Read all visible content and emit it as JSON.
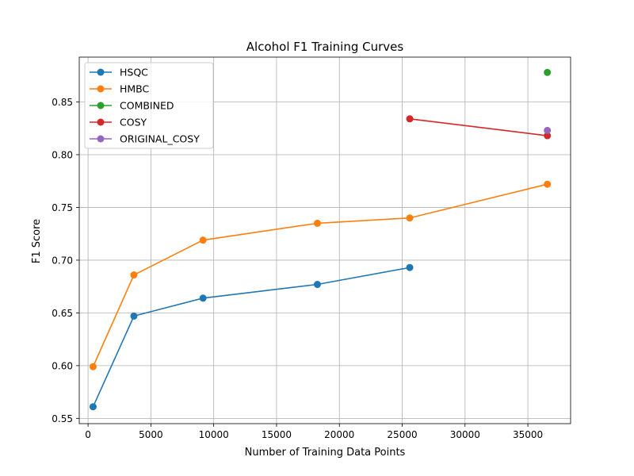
{
  "chart_data": {
    "type": "line",
    "title": "Alcohol F1 Training Curves",
    "xlabel": "Number of Training Data Points",
    "ylabel": "F1 Score",
    "xlim": [
      -700,
      38400
    ],
    "ylim": [
      0.545,
      0.8925
    ],
    "xticks": [
      0,
      5000,
      10000,
      15000,
      20000,
      25000,
      30000,
      35000
    ],
    "yticks": [
      0.55,
      0.6,
      0.65,
      0.7,
      0.75,
      0.8,
      0.85
    ],
    "xtick_labels": [
      "0",
      "5000",
      "10000",
      "15000",
      "20000",
      "25000",
      "30000",
      "35000"
    ],
    "ytick_labels": [
      "0.55",
      "0.60",
      "0.65",
      "0.70",
      "0.75",
      "0.80",
      "0.85"
    ],
    "grid": true,
    "legend_position": "top-left",
    "series": [
      {
        "name": "HSQC",
        "color": "#1f77b4",
        "x": [
          400,
          3650,
          9150,
          18250,
          25600
        ],
        "y": [
          0.561,
          0.647,
          0.664,
          0.677,
          0.693
        ]
      },
      {
        "name": "HMBC",
        "color": "#ff7f0e",
        "x": [
          400,
          3650,
          9150,
          18250,
          25600,
          36550
        ],
        "y": [
          0.599,
          0.686,
          0.719,
          0.735,
          0.74,
          0.772
        ]
      },
      {
        "name": "COMBINED",
        "color": "#2ca02c",
        "x": [
          36550
        ],
        "y": [
          0.878
        ]
      },
      {
        "name": "COSY",
        "color": "#d62728",
        "x": [
          25600,
          36550
        ],
        "y": [
          0.834,
          0.818
        ]
      },
      {
        "name": "ORIGINAL_COSY",
        "color": "#9467bd",
        "x": [
          36550
        ],
        "y": [
          0.823
        ]
      }
    ]
  }
}
